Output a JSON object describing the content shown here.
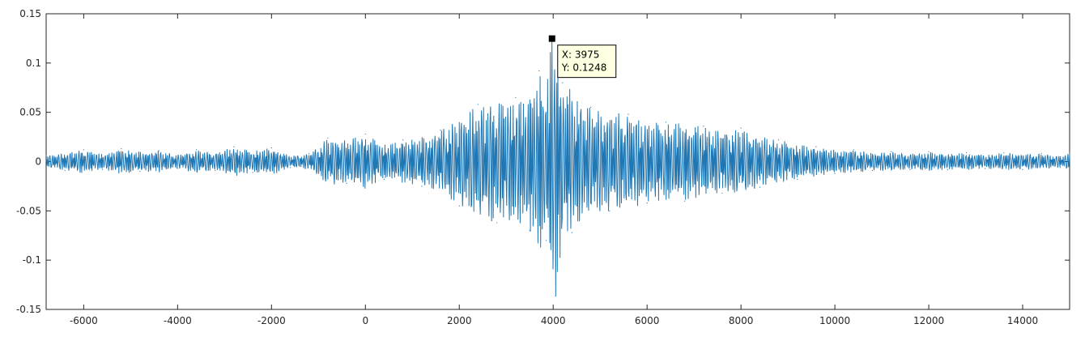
{
  "chart_data": {
    "type": "line",
    "title": "",
    "xlabel": "",
    "ylabel": "",
    "xlim": [
      -6800,
      15000
    ],
    "ylim": [
      -0.15,
      0.15
    ],
    "grid": false,
    "legend": "none",
    "xticks": [
      -6000,
      -4000,
      -2000,
      0,
      2000,
      4000,
      6000,
      8000,
      10000,
      12000,
      14000
    ],
    "xtick_labels": [
      "-6000",
      "-4000",
      "-2000",
      "0",
      "2000",
      "4000",
      "6000",
      "8000",
      "10000",
      "12000",
      "14000"
    ],
    "yticks": [
      -0.15,
      -0.1,
      -0.05,
      0,
      0.05,
      0.1,
      0.15
    ],
    "ytick_labels": [
      "-0.15",
      "-0.1",
      "-0.05",
      "0",
      "0.05",
      "0.1",
      "0.15"
    ],
    "series": [
      {
        "color": "#1f77b4",
        "x": [
          -6800,
          -6400,
          -6000,
          -5600,
          -5200,
          -4800,
          -4400,
          -4000,
          -3600,
          -3200,
          -2800,
          -2400,
          -2000,
          -1600,
          -1200,
          -800,
          -400,
          0,
          400,
          800,
          1200,
          1600,
          2000,
          2400,
          2800,
          3200,
          3500,
          3700,
          3850,
          3975,
          4050,
          4200,
          4400,
          4800,
          5200,
          5600,
          6000,
          6400,
          6800,
          7200,
          7600,
          8000,
          8400,
          8800,
          9200,
          9600,
          10000,
          10400,
          10800,
          11200,
          11600,
          12000,
          12400,
          12800,
          13200,
          13600,
          14000,
          14400,
          14800,
          15000
        ],
        "y": [
          0.006,
          -0.009,
          0.012,
          -0.008,
          0.013,
          -0.01,
          0.011,
          -0.007,
          0.012,
          -0.009,
          0.015,
          -0.011,
          0.014,
          -0.006,
          0.008,
          0.024,
          -0.022,
          0.028,
          -0.018,
          0.022,
          -0.025,
          0.032,
          -0.045,
          0.058,
          -0.062,
          0.065,
          -0.07,
          0.092,
          -0.08,
          0.1248,
          -0.1365,
          0.08,
          -0.072,
          0.055,
          -0.05,
          0.048,
          -0.042,
          0.04,
          -0.04,
          0.036,
          -0.032,
          0.034,
          -0.026,
          0.022,
          -0.018,
          0.015,
          -0.012,
          0.012,
          -0.009,
          0.01,
          -0.008,
          0.01,
          -0.008,
          0.009,
          -0.007,
          0.009,
          -0.008,
          0.008,
          -0.006,
          0.009
        ]
      }
    ],
    "datatip": {
      "x": 3975,
      "y": 0.1248,
      "x_text": "X: 3975",
      "y_text": "Y: 0.1248"
    }
  }
}
